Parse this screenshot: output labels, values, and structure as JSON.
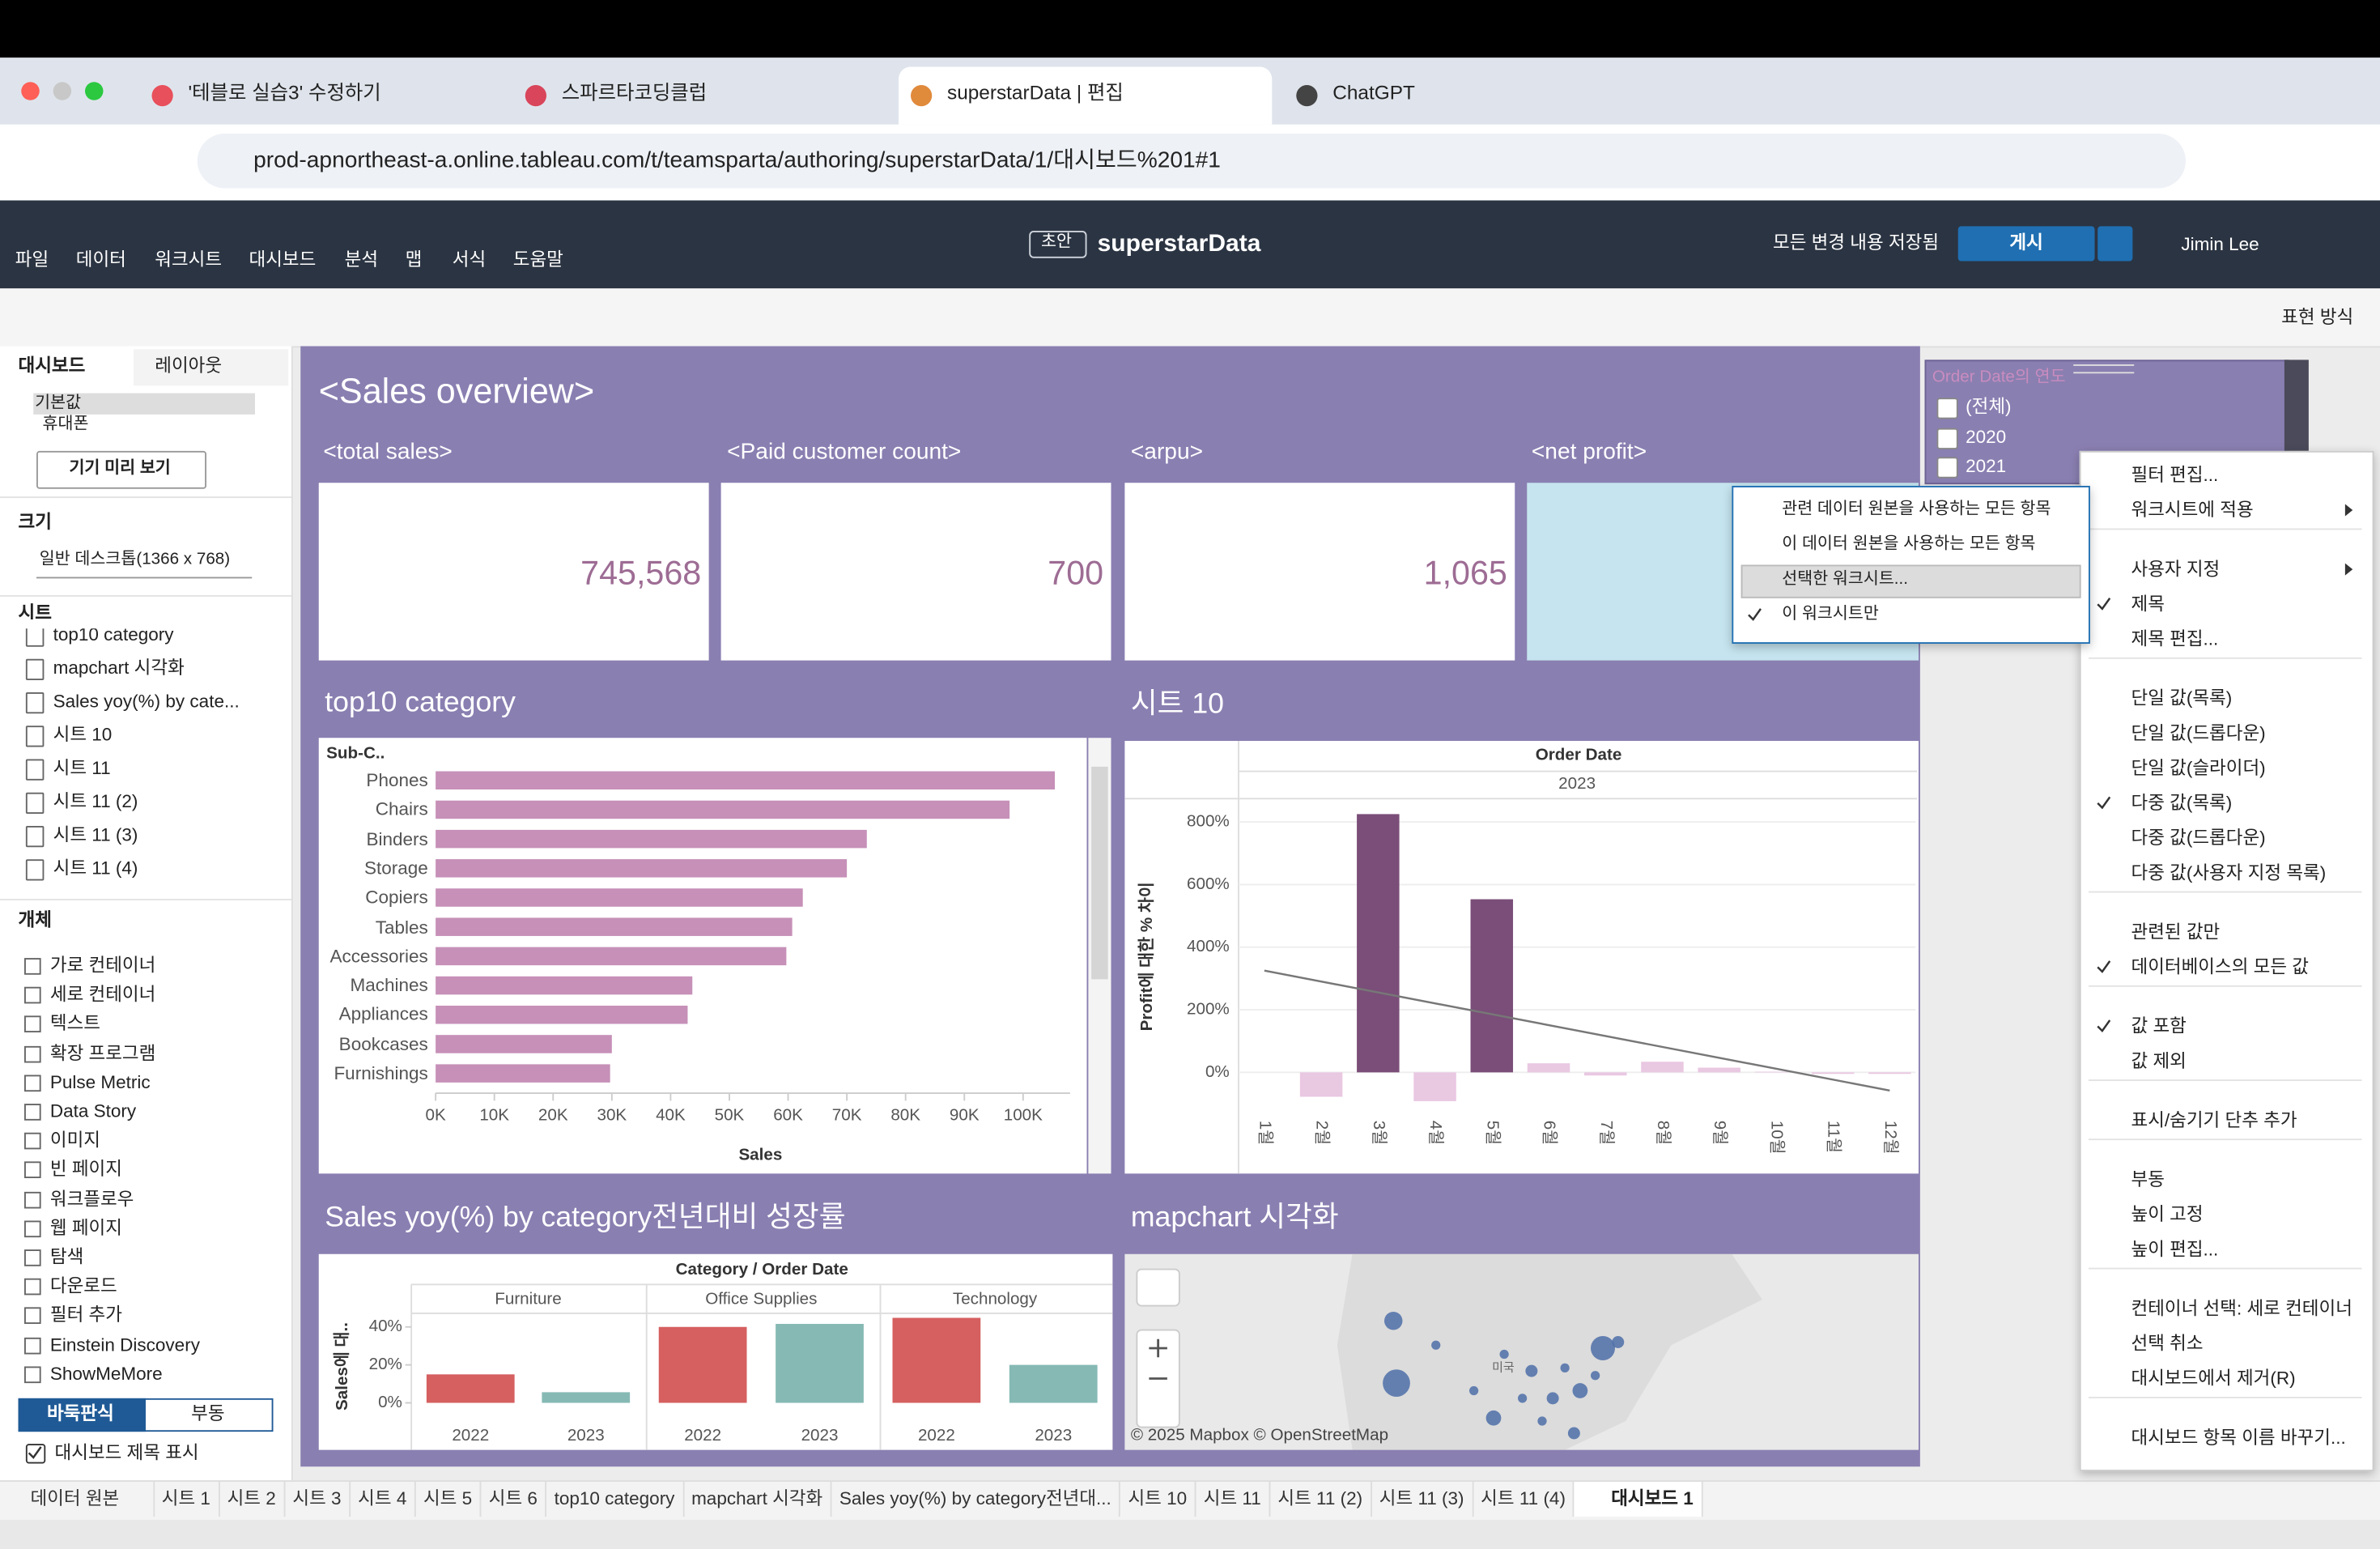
{
  "browser": {
    "tabs": [
      "'테블로 실습3' 수정하기",
      "스파르타코딩클럽",
      "superstarData | 편집",
      "ChatGPT"
    ],
    "active_tab": 2,
    "url": "prod-apnortheast-a.online.tableau.com/t/teamsparta/authoring/superstarData/1/대시보드%201#1"
  },
  "header": {
    "menu": [
      "파일",
      "데이터",
      "워크시트",
      "대시보드",
      "분석",
      "맵",
      "서식",
      "도움말"
    ],
    "badge": "초안",
    "workbook": "superstarData",
    "status": "모든 변경 내용 저장됨",
    "publish": "게시",
    "user": "Jimin Lee",
    "view": "표현 방식"
  },
  "sidebar": {
    "tabs": [
      "대시보드",
      "레이아웃"
    ],
    "devices": [
      "기본값",
      "휴대폰"
    ],
    "preview": "기기 미리 보기",
    "size_label": "크기",
    "size": "일반 데스크톱(1366 x 768)",
    "sheets_label": "시트",
    "sheets": [
      "top10 category",
      "mapchart 시각화",
      "Sales yoy(%) by cate...",
      "시트 10",
      "시트 11",
      "시트 11 (2)",
      "시트 11 (3)",
      "시트 11 (4)"
    ],
    "objects_label": "개체",
    "objects": [
      "가로 컨테이너",
      "세로 컨테이너",
      "텍스트",
      "확장 프로그램",
      "Pulse Metric",
      "Data Story",
      "이미지",
      "빈 페이지",
      "워크플로우",
      "웹 페이지",
      "탐색",
      "다운로드",
      "필터 추가",
      "Einstein Discovery",
      "ShowMeMore"
    ],
    "layout": [
      "바둑판식",
      "부동"
    ],
    "show_title": "대시보드 제목 표시"
  },
  "dashboard": {
    "title": "<Sales overview>",
    "kpis": [
      {
        "label": "<total sales>",
        "value": "745,568"
      },
      {
        "label": "<Paid customer count>",
        "value": "700"
      },
      {
        "label": "<arpu>",
        "value": "1,065"
      },
      {
        "label": "<net profit>"
      }
    ],
    "map": {
      "title": "mapchart 시각화",
      "country": "미국",
      "attribution": "© 2025 Mapbox © OpenStreetMap"
    }
  },
  "chart_data": [
    {
      "type": "bar",
      "orientation": "horizontal",
      "title": "top10 category",
      "header": "Sub-C..",
      "categories": [
        "Phones",
        "Chairs",
        "Binders",
        "Storage",
        "Copiers",
        "Tables",
        "Accessories",
        "Machines",
        "Appliances",
        "Bookcases",
        "Furnishings"
      ],
      "values": [
        105400,
        97700,
        73400,
        70000,
        62500,
        60700,
        59700,
        43700,
        42900,
        30000,
        29700
      ],
      "color": "#c690b8",
      "xlim": [
        0,
        108000
      ],
      "xticks": [
        {
          "value": 0,
          "label": "0K"
        },
        {
          "value": 10000,
          "label": "10K"
        },
        {
          "value": 20000,
          "label": "20K"
        },
        {
          "value": 30000,
          "label": "30K"
        },
        {
          "value": 40000,
          "label": "40K"
        },
        {
          "value": 50000,
          "label": "50K"
        },
        {
          "value": 60000,
          "label": "60K"
        },
        {
          "value": 70000,
          "label": "70K"
        },
        {
          "value": 80000,
          "label": "80K"
        },
        {
          "value": 90000,
          "label": "90K"
        },
        {
          "value": 100000,
          "label": "100K"
        }
      ],
      "xlabel": "Sales"
    },
    {
      "type": "bar",
      "title": "시트 10",
      "header": "Order Date",
      "subheader": "2023",
      "ylabel": "Profit에 대한 % 차이",
      "categories": [
        "1월",
        "2월",
        "3월",
        "4월",
        "5월",
        "6월",
        "7월",
        "8월",
        "9월",
        "10월",
        "11월",
        "12월"
      ],
      "values": [
        null,
        -78,
        825,
        -92,
        553,
        29,
        -10,
        34,
        15,
        2,
        -5,
        -5
      ],
      "colors": [
        null,
        "#e9c8e2",
        "#7a4e78",
        "#e9c8e2",
        "#7a4e78",
        "#e9c8e2",
        "#e9c8e2",
        "#e9c8e2",
        "#e9c8e2",
        "#e9c8e2",
        "#e9c8e2",
        "#e9c8e2"
      ],
      "trendline": {
        "values": [
          325,
          -58
        ],
        "color": "#777777"
      },
      "ylim": [
        -110,
        860
      ],
      "yticks": [
        {
          "value": 0,
          "label": "0%"
        },
        {
          "value": 200,
          "label": "200%"
        },
        {
          "value": 400,
          "label": "400%"
        },
        {
          "value": 600,
          "label": "600%"
        },
        {
          "value": 800,
          "label": "800%"
        }
      ],
      "grid": true
    },
    {
      "type": "bar",
      "title": "Sales yoy(%) by category전년대비 성장률",
      "header": "Category / Order Date",
      "ylabel": "Sales에 대..",
      "groups": [
        "Furniture",
        "Office Supplies",
        "Technology"
      ],
      "categories": [
        "2022",
        "2023",
        "2022",
        "2023",
        "2022",
        "2023"
      ],
      "values": [
        15,
        5.6,
        40,
        41.6,
        44.8,
        20
      ],
      "colors": [
        "#d65f5f",
        "#86b9b4",
        "#d65f5f",
        "#86b9b4",
        "#d65f5f",
        "#86b9b4"
      ],
      "ylim": [
        -5,
        48
      ],
      "yticks": [
        {
          "value": 0,
          "label": "0%"
        },
        {
          "value": 20,
          "label": "20%"
        },
        {
          "value": 40,
          "label": "40%"
        }
      ]
    }
  ],
  "filter": {
    "title": "Order Date의 연도",
    "items": [
      "(전체)",
      "2020",
      "2021"
    ]
  },
  "submenu": {
    "items": [
      "관련 데이터 원본을 사용하는 모든 항목",
      "이 데이터 원본을 사용하는 모든 항목",
      "선택한 워크시트...",
      "이 워크시트만"
    ],
    "highlighted": 2,
    "checked": 3
  },
  "menu": {
    "groups": [
      [
        {
          "label": "필터 편집..."
        },
        {
          "label": "워크시트에 적용",
          "submenu": true
        }
      ],
      [
        {
          "label": "사용자 지정",
          "submenu": true
        },
        {
          "label": "제목",
          "checked": true
        },
        {
          "label": "제목 편집..."
        }
      ],
      [
        {
          "label": "단일 값(목록)"
        },
        {
          "label": "단일 값(드롭다운)"
        },
        {
          "label": "단일 값(슬라이더)"
        },
        {
          "label": "다중 값(목록)",
          "checked": true
        },
        {
          "label": "다중 값(드롭다운)"
        },
        {
          "label": "다중 값(사용자 지정 목록)"
        }
      ],
      [
        {
          "label": "관련된 값만"
        },
        {
          "label": "데이터베이스의 모든 값",
          "checked": true
        }
      ],
      [
        {
          "label": "값 포함",
          "checked": true
        },
        {
          "label": "값 제외"
        }
      ],
      [
        {
          "label": "표시/숨기기 단추 추가"
        }
      ],
      [
        {
          "label": "부동"
        },
        {
          "label": "높이 고정"
        },
        {
          "label": "높이 편집..."
        }
      ],
      [
        {
          "label": "컨테이너 선택: 세로 컨테이너"
        },
        {
          "label": "선택 취소"
        },
        {
          "label": "대시보드에서 제거(R)"
        }
      ],
      [
        {
          "label": "대시보드 항목 이름 바꾸기..."
        }
      ]
    ]
  },
  "sheet_tabs": {
    "items": [
      "데이터 원본",
      "시트 1",
      "시트 2",
      "시트 3",
      "시트 4",
      "시트 5",
      "시트 6",
      "top10 category",
      "mapchart 시각화",
      "Sales yoy(%) by category전년대...",
      "시트 10",
      "시트 11",
      "시트 11 (2)",
      "시트 11 (3)",
      "시트 11 (4)",
      "대시보드 1"
    ],
    "active": 15
  }
}
